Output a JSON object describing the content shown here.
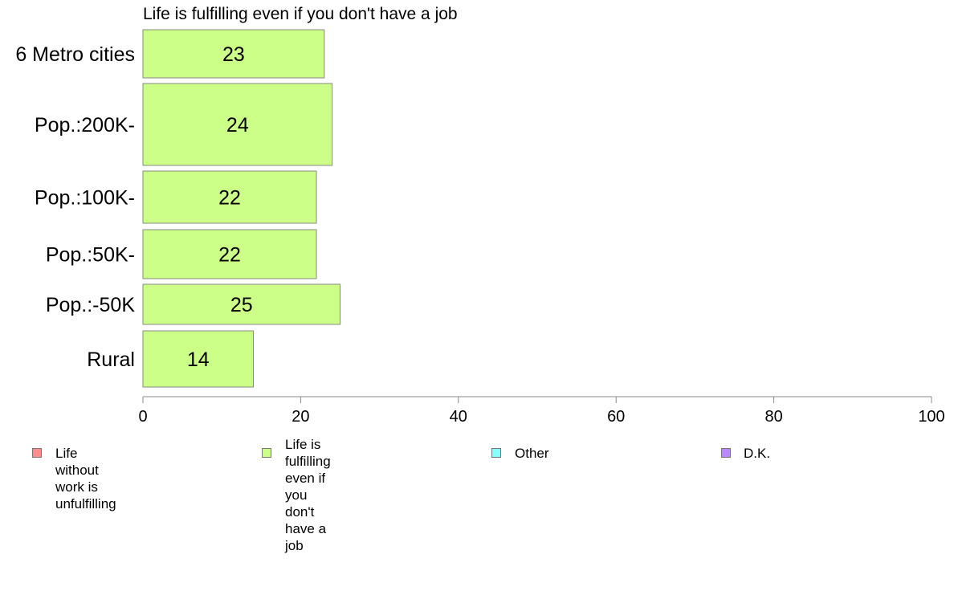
{
  "chart_data": {
    "type": "bar",
    "orientation": "horizontal",
    "title": "Life is fulfilling even if you don't have a job",
    "xlabel": "",
    "ylabel": "",
    "categories": [
      "6 Metro cities",
      "Pop.:200K-",
      "Pop.:100K-",
      "Pop.:50K-",
      "Pop.:-50K",
      "Rural"
    ],
    "series": [
      {
        "name": "Life is fulfilling even if you don't have a job",
        "values": [
          23,
          24,
          22,
          22,
          25,
          14
        ],
        "color": "#ccff88"
      }
    ],
    "xlim": [
      0,
      100
    ],
    "xticks": [
      "0",
      "20",
      "40",
      "60",
      "80",
      "100"
    ],
    "grid": false,
    "legend_placement": "bottom",
    "legend": [
      {
        "label": "Life without work is unfulfilling",
        "color": "#ff8c8c"
      },
      {
        "label": "Life is fulfilling even if\nyou don't have a job",
        "color": "#ccff88"
      },
      {
        "label": "Other",
        "color": "#88ffff"
      },
      {
        "label": "D.K.",
        "color": "#bb88ff"
      }
    ]
  }
}
